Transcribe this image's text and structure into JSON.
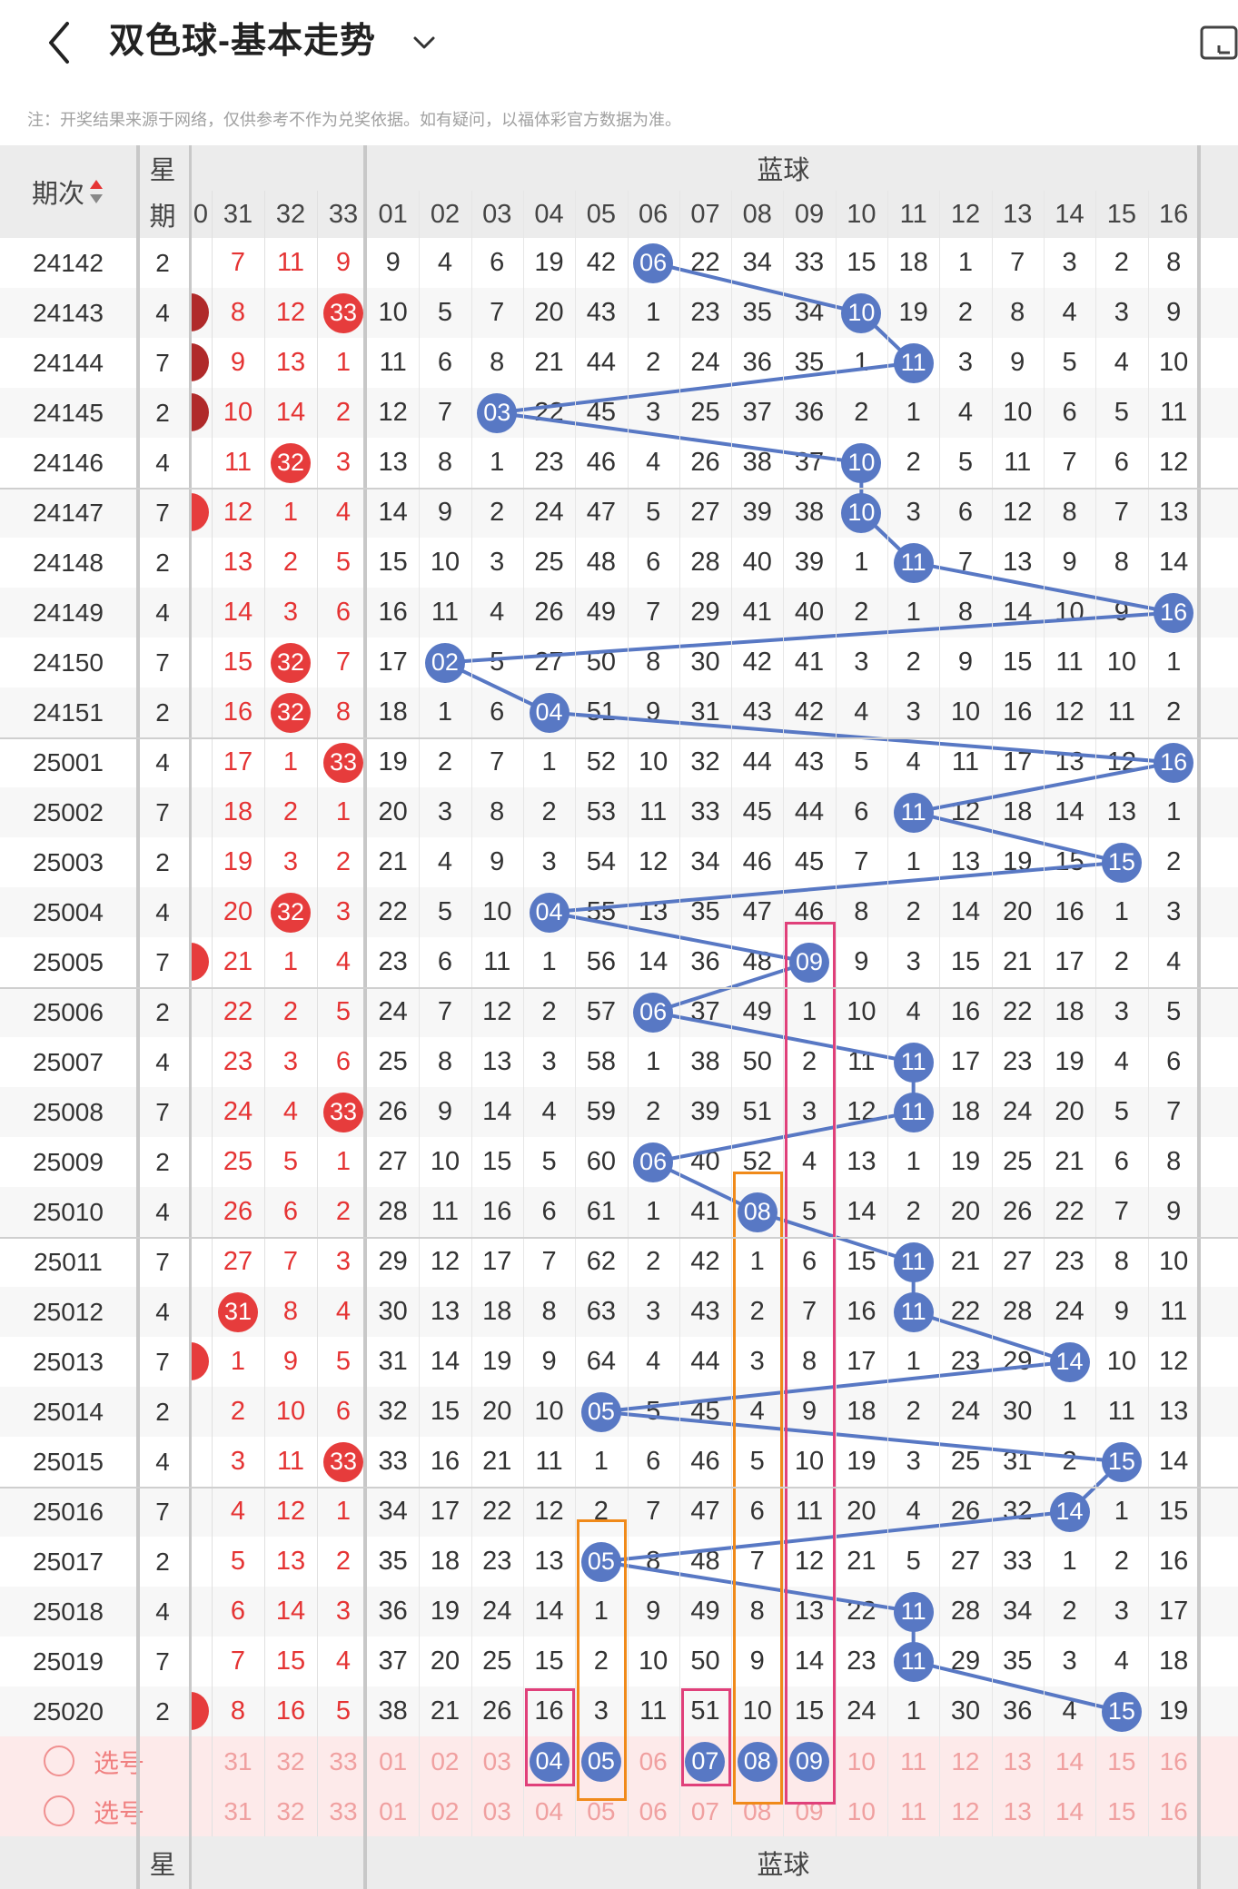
{
  "header": {
    "title": "双色球-基本走势",
    "note": "注：开奖结果来源于网络，仅供参考不作为兑奖依据。如有疑问，以福体彩官方数据为准。"
  },
  "table": {
    "col_period": "期次",
    "col_week": [
      "星",
      "期"
    ],
    "blue_section_label": "蓝球",
    "red_tail_headers": [
      "0",
      "31",
      "32",
      "33"
    ],
    "blue_headers": [
      "01",
      "02",
      "03",
      "04",
      "05",
      "06",
      "07",
      "08",
      "09",
      "10",
      "11",
      "12",
      "13",
      "14",
      "15",
      "16"
    ],
    "footer_week": "星",
    "footer_blue_label": "蓝球",
    "rows": [
      {
        "period": "24142",
        "week": "2",
        "red": [
          "",
          "7",
          "11",
          "9"
        ],
        "red_balls": [],
        "red_edge": false,
        "blue": [
          "9",
          "4",
          "6",
          "19",
          "42",
          "06",
          "22",
          "34",
          "33",
          "15",
          "18",
          "1",
          "7",
          "3",
          "2",
          "8"
        ]
      },
      {
        "period": "24143",
        "week": "4",
        "red": [
          "",
          "8",
          "12",
          "33"
        ],
        "red_balls": [
          3
        ],
        "red_edge": true,
        "blue": [
          "10",
          "5",
          "7",
          "20",
          "43",
          "1",
          "23",
          "35",
          "34",
          "10",
          "19",
          "2",
          "8",
          "4",
          "3",
          "9"
        ]
      },
      {
        "period": "24144",
        "week": "7",
        "red": [
          "",
          "9",
          "13",
          "1"
        ],
        "red_balls": [],
        "red_edge": true,
        "blue": [
          "11",
          "6",
          "8",
          "21",
          "44",
          "2",
          "24",
          "36",
          "35",
          "1",
          "11",
          "3",
          "9",
          "5",
          "4",
          "10"
        ]
      },
      {
        "period": "24145",
        "week": "2",
        "red": [
          "",
          "10",
          "14",
          "2"
        ],
        "red_balls": [],
        "red_edge": true,
        "blue": [
          "12",
          "7",
          "03",
          "22",
          "45",
          "3",
          "25",
          "37",
          "36",
          "2",
          "1",
          "4",
          "10",
          "6",
          "5",
          "11"
        ]
      },
      {
        "period": "24146",
        "week": "4",
        "red": [
          "",
          "11",
          "32",
          "3"
        ],
        "red_balls": [
          2
        ],
        "red_edge": false,
        "blue": [
          "13",
          "8",
          "1",
          "23",
          "46",
          "4",
          "26",
          "38",
          "37",
          "10",
          "2",
          "5",
          "11",
          "7",
          "6",
          "12"
        ]
      },
      {
        "period": "24147",
        "week": "7",
        "red": [
          "",
          "12",
          "1",
          "4"
        ],
        "red_balls": [],
        "red_edge": true,
        "blue": [
          "14",
          "9",
          "2",
          "24",
          "47",
          "5",
          "27",
          "39",
          "38",
          "10",
          "3",
          "6",
          "12",
          "8",
          "7",
          "13"
        ]
      },
      {
        "period": "24148",
        "week": "2",
        "red": [
          "",
          "13",
          "2",
          "5"
        ],
        "red_balls": [],
        "red_edge": false,
        "blue": [
          "15",
          "10",
          "3",
          "25",
          "48",
          "6",
          "28",
          "40",
          "39",
          "1",
          "11",
          "7",
          "13",
          "9",
          "8",
          "14"
        ]
      },
      {
        "period": "24149",
        "week": "4",
        "red": [
          "",
          "14",
          "3",
          "6"
        ],
        "red_balls": [],
        "red_edge": false,
        "blue": [
          "16",
          "11",
          "4",
          "26",
          "49",
          "7",
          "29",
          "41",
          "40",
          "2",
          "1",
          "8",
          "14",
          "10",
          "9",
          "16"
        ]
      },
      {
        "period": "24150",
        "week": "7",
        "red": [
          "",
          "15",
          "32",
          "7"
        ],
        "red_balls": [
          2
        ],
        "red_edge": false,
        "blue": [
          "17",
          "02",
          "5",
          "27",
          "50",
          "8",
          "30",
          "42",
          "41",
          "3",
          "2",
          "9",
          "15",
          "11",
          "10",
          "1"
        ]
      },
      {
        "period": "24151",
        "week": "2",
        "red": [
          "",
          "16",
          "32",
          "8"
        ],
        "red_balls": [
          2
        ],
        "red_edge": false,
        "blue": [
          "18",
          "1",
          "6",
          "04",
          "51",
          "9",
          "31",
          "43",
          "42",
          "4",
          "3",
          "10",
          "16",
          "12",
          "11",
          "2"
        ]
      },
      {
        "period": "25001",
        "week": "4",
        "red": [
          "",
          "17",
          "1",
          "33"
        ],
        "red_balls": [
          3
        ],
        "red_edge": false,
        "blue": [
          "19",
          "2",
          "7",
          "1",
          "52",
          "10",
          "32",
          "44",
          "43",
          "5",
          "4",
          "11",
          "17",
          "13",
          "12",
          "16"
        ]
      },
      {
        "period": "25002",
        "week": "7",
        "red": [
          "",
          "18",
          "2",
          "1"
        ],
        "red_balls": [],
        "red_edge": false,
        "blue": [
          "20",
          "3",
          "8",
          "2",
          "53",
          "11",
          "33",
          "45",
          "44",
          "6",
          "11",
          "12",
          "18",
          "14",
          "13",
          "1"
        ]
      },
      {
        "period": "25003",
        "week": "2",
        "red": [
          "",
          "19",
          "3",
          "2"
        ],
        "red_balls": [],
        "red_edge": false,
        "blue": [
          "21",
          "4",
          "9",
          "3",
          "54",
          "12",
          "34",
          "46",
          "45",
          "7",
          "1",
          "13",
          "19",
          "15",
          "15",
          "2"
        ]
      },
      {
        "period": "25004",
        "week": "4",
        "red": [
          "",
          "20",
          "32",
          "3"
        ],
        "red_balls": [
          2
        ],
        "red_edge": false,
        "blue": [
          "22",
          "5",
          "10",
          "04",
          "55",
          "13",
          "35",
          "47",
          "46",
          "8",
          "2",
          "14",
          "20",
          "16",
          "1",
          "3"
        ]
      },
      {
        "period": "25005",
        "week": "7",
        "red": [
          "",
          "21",
          "1",
          "4"
        ],
        "red_balls": [],
        "red_edge": true,
        "blue": [
          "23",
          "6",
          "11",
          "1",
          "56",
          "14",
          "36",
          "48",
          "09",
          "9",
          "3",
          "15",
          "21",
          "17",
          "2",
          "4"
        ]
      },
      {
        "period": "25006",
        "week": "2",
        "red": [
          "",
          "22",
          "2",
          "5"
        ],
        "red_balls": [],
        "red_edge": false,
        "blue": [
          "24",
          "7",
          "12",
          "2",
          "57",
          "06",
          "37",
          "49",
          "1",
          "10",
          "4",
          "16",
          "22",
          "18",
          "3",
          "5"
        ]
      },
      {
        "period": "25007",
        "week": "4",
        "red": [
          "",
          "23",
          "3",
          "6"
        ],
        "red_balls": [],
        "red_edge": false,
        "blue": [
          "25",
          "8",
          "13",
          "3",
          "58",
          "1",
          "38",
          "50",
          "2",
          "11",
          "11",
          "17",
          "23",
          "19",
          "4",
          "6"
        ]
      },
      {
        "period": "25008",
        "week": "7",
        "red": [
          "",
          "24",
          "4",
          "33"
        ],
        "red_balls": [
          3
        ],
        "red_edge": false,
        "blue": [
          "26",
          "9",
          "14",
          "4",
          "59",
          "2",
          "39",
          "51",
          "3",
          "12",
          "11",
          "18",
          "24",
          "20",
          "5",
          "7"
        ]
      },
      {
        "period": "25009",
        "week": "2",
        "red": [
          "",
          "25",
          "5",
          "1"
        ],
        "red_balls": [],
        "red_edge": false,
        "blue": [
          "27",
          "10",
          "15",
          "5",
          "60",
          "06",
          "40",
          "52",
          "4",
          "13",
          "1",
          "19",
          "25",
          "21",
          "6",
          "8"
        ]
      },
      {
        "period": "25010",
        "week": "4",
        "red": [
          "",
          "26",
          "6",
          "2"
        ],
        "red_balls": [],
        "red_edge": false,
        "blue": [
          "28",
          "11",
          "16",
          "6",
          "61",
          "1",
          "41",
          "08",
          "5",
          "14",
          "2",
          "20",
          "26",
          "22",
          "7",
          "9"
        ]
      },
      {
        "period": "25011",
        "week": "7",
        "red": [
          "",
          "27",
          "7",
          "3"
        ],
        "red_balls": [],
        "red_edge": false,
        "blue": [
          "29",
          "12",
          "17",
          "7",
          "62",
          "2",
          "42",
          "1",
          "6",
          "15",
          "11",
          "21",
          "27",
          "23",
          "8",
          "10"
        ]
      },
      {
        "period": "25012",
        "week": "4",
        "red": [
          "",
          "31",
          "8",
          "4"
        ],
        "red_balls": [
          1
        ],
        "red_edge": false,
        "blue": [
          "30",
          "13",
          "18",
          "8",
          "63",
          "3",
          "43",
          "2",
          "7",
          "16",
          "11",
          "22",
          "28",
          "24",
          "9",
          "11"
        ]
      },
      {
        "period": "25013",
        "week": "7",
        "red": [
          "",
          "1",
          "9",
          "5"
        ],
        "red_balls": [],
        "red_edge": true,
        "blue": [
          "31",
          "14",
          "19",
          "9",
          "64",
          "4",
          "44",
          "3",
          "8",
          "17",
          "1",
          "23",
          "29",
          "14",
          "10",
          "12"
        ]
      },
      {
        "period": "25014",
        "week": "2",
        "red": [
          "",
          "2",
          "10",
          "6"
        ],
        "red_balls": [],
        "red_edge": false,
        "blue": [
          "32",
          "15",
          "20",
          "10",
          "05",
          "5",
          "45",
          "4",
          "9",
          "18",
          "2",
          "24",
          "30",
          "1",
          "11",
          "13"
        ]
      },
      {
        "period": "25015",
        "week": "4",
        "red": [
          "",
          "3",
          "11",
          "33"
        ],
        "red_balls": [
          3
        ],
        "red_edge": false,
        "blue": [
          "33",
          "16",
          "21",
          "11",
          "1",
          "6",
          "46",
          "5",
          "10",
          "19",
          "3",
          "25",
          "31",
          "2",
          "15",
          "14"
        ]
      },
      {
        "period": "25016",
        "week": "7",
        "red": [
          "",
          "4",
          "12",
          "1"
        ],
        "red_balls": [],
        "red_edge": false,
        "blue": [
          "34",
          "17",
          "22",
          "12",
          "2",
          "7",
          "47",
          "6",
          "11",
          "20",
          "4",
          "26",
          "32",
          "14",
          "1",
          "15"
        ]
      },
      {
        "period": "25017",
        "week": "2",
        "red": [
          "",
          "5",
          "13",
          "2"
        ],
        "red_balls": [],
        "red_edge": false,
        "blue": [
          "35",
          "18",
          "23",
          "13",
          "05",
          "8",
          "48",
          "7",
          "12",
          "21",
          "5",
          "27",
          "33",
          "1",
          "2",
          "16"
        ]
      },
      {
        "period": "25018",
        "week": "4",
        "red": [
          "",
          "6",
          "14",
          "3"
        ],
        "red_balls": [],
        "red_edge": false,
        "blue": [
          "36",
          "19",
          "24",
          "14",
          "1",
          "9",
          "49",
          "8",
          "13",
          "22",
          "11",
          "28",
          "34",
          "2",
          "3",
          "17"
        ]
      },
      {
        "period": "25019",
        "week": "7",
        "red": [
          "",
          "7",
          "15",
          "4"
        ],
        "red_balls": [],
        "red_edge": false,
        "blue": [
          "37",
          "20",
          "25",
          "15",
          "2",
          "10",
          "50",
          "9",
          "14",
          "23",
          "11",
          "29",
          "35",
          "3",
          "4",
          "18"
        ]
      },
      {
        "period": "25020",
        "week": "2",
        "red": [
          "",
          "8",
          "16",
          "5"
        ],
        "red_balls": [],
        "red_edge": true,
        "blue": [
          "38",
          "21",
          "26",
          "16",
          "3",
          "11",
          "51",
          "10",
          "15",
          "24",
          "1",
          "30",
          "36",
          "4",
          "15",
          "19"
        ]
      }
    ],
    "select_rows": [
      {
        "label": "选号",
        "red": [
          "0",
          "31",
          "32",
          "33"
        ],
        "blue_selected": [
          "04",
          "05",
          "07",
          "08",
          "09"
        ]
      },
      {
        "label": "选号",
        "red": [
          "0",
          "31",
          "32",
          "33"
        ],
        "blue_selected": []
      }
    ],
    "blue_winners": [
      6,
      10,
      11,
      3,
      10,
      10,
      11,
      16,
      2,
      4,
      16,
      11,
      15,
      4,
      9,
      6,
      11,
      11,
      6,
      8,
      11,
      11,
      14,
      5,
      15,
      14,
      5,
      11,
      11,
      15
    ],
    "colors": {
      "red_ball": "#e63c3c",
      "blue_ball": "#5878c4",
      "line": "#5878c4",
      "highlight_pink": "#e0407a",
      "highlight_orange": "#f08a1a"
    }
  }
}
